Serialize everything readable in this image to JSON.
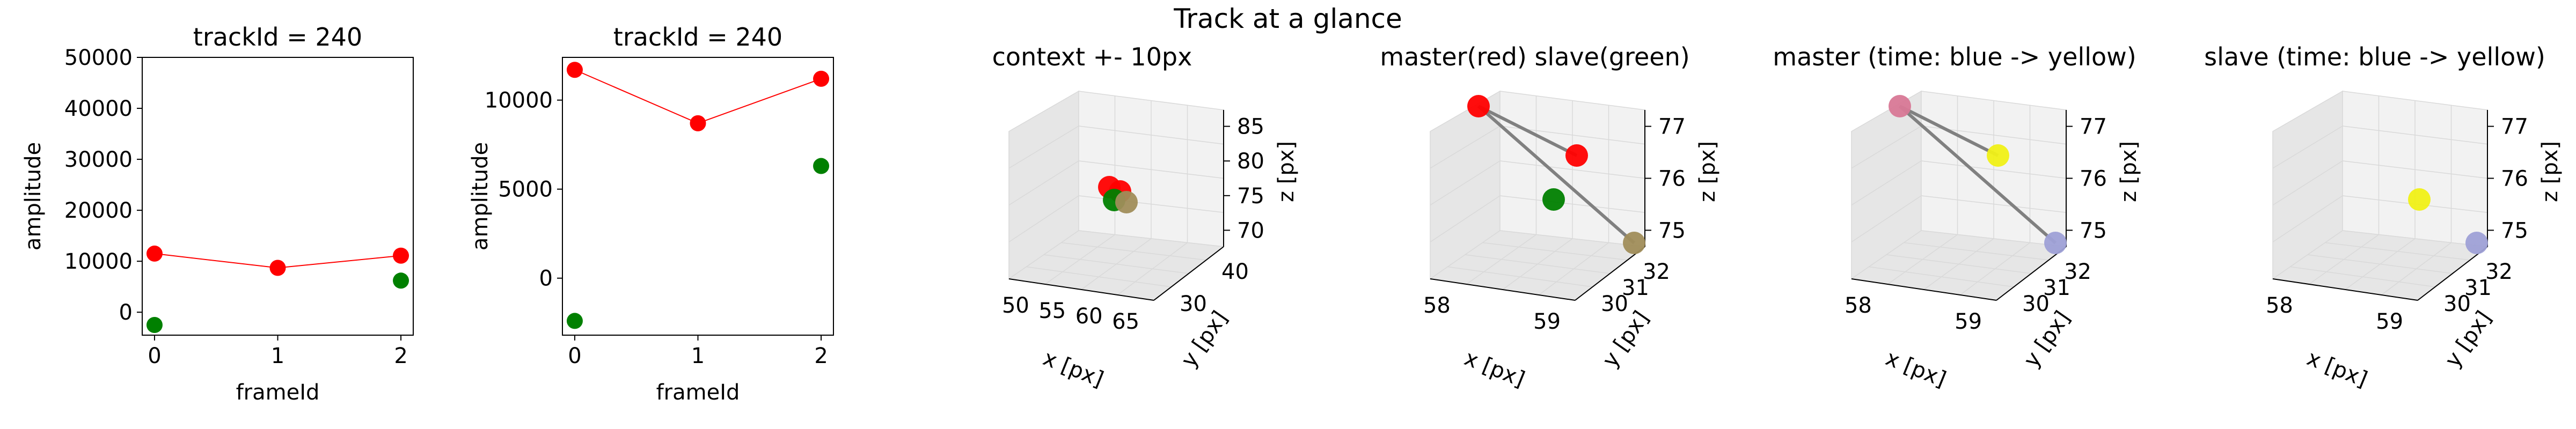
{
  "figure": {
    "suptitle": "Track at a glance"
  },
  "colors": {
    "red": "#ff0000",
    "green": "#008000",
    "line_red": "#ff0000",
    "link_gray": "#808080",
    "olive": "#a08d5a",
    "pink": "#d87896",
    "yellow": "#f0f016",
    "lavender": "#9ea0d6",
    "pane_light": "#f2f2f2",
    "pane_dark": "#e6e6e6",
    "grid": "#d9d9d9"
  },
  "chart_data": [
    {
      "type": "scatter",
      "title": "trackId = 240",
      "xlabel": "frameId",
      "ylabel": "amplitude",
      "xlim": [
        -0.1,
        2.1
      ],
      "ylim": [
        -4500,
        50000
      ],
      "xticks": [
        0,
        1,
        2
      ],
      "yticks": [
        0,
        10000,
        20000,
        30000,
        40000,
        50000
      ],
      "series": [
        {
          "color": "red",
          "x": [
            0,
            1,
            2
          ],
          "y": [
            11500,
            8700,
            11100
          ],
          "line": true
        },
        {
          "color": "green",
          "x": [
            0,
            2
          ],
          "y": [
            -2500,
            6200
          ],
          "line": false
        }
      ]
    },
    {
      "type": "scatter",
      "title": "trackId = 240",
      "xlabel": "frameId",
      "ylabel": "amplitude",
      "xlim": [
        -0.1,
        2.1
      ],
      "ylim": [
        -3200,
        12400
      ],
      "xticks": [
        0,
        1,
        2
      ],
      "yticks": [
        0,
        5000,
        10000
      ],
      "series": [
        {
          "color": "red",
          "x": [
            0,
            1,
            2
          ],
          "y": [
            11700,
            8700,
            11200
          ],
          "line": true
        },
        {
          "color": "green",
          "x": [
            0,
            2
          ],
          "y": [
            -2400,
            6300
          ],
          "line": false
        }
      ]
    },
    {
      "type": "scatter3d",
      "title": "context +- 10px",
      "xlabel": "x [px]",
      "ylabel": "y [px]",
      "zlabel": "z [px]",
      "xticks": [
        "50",
        "55",
        "60",
        "65"
      ],
      "yticks": [
        "30",
        "40"
      ],
      "zticks": [
        "70",
        "75",
        "80",
        "85"
      ],
      "points": [
        {
          "color": "red",
          "label_pos": "ctx-1"
        },
        {
          "color": "red",
          "label_pos": "ctx-2"
        },
        {
          "color": "green",
          "label_pos": "ctx-3"
        },
        {
          "color": "olive",
          "label_pos": "ctx-4"
        }
      ]
    },
    {
      "type": "scatter3d",
      "title": "master(red) slave(green)",
      "xlabel": "x [px]",
      "ylabel": "y [px]",
      "zlabel": "z [px]",
      "xticks": [
        "58",
        "59"
      ],
      "yticks": [
        "30",
        "31",
        "32"
      ],
      "zticks": [
        "75",
        "76",
        "77"
      ],
      "points": [
        {
          "color": "red"
        },
        {
          "color": "red"
        },
        {
          "color": "green"
        },
        {
          "color": "olive"
        }
      ]
    },
    {
      "type": "scatter3d",
      "title": "master (time: blue -> yellow)",
      "xlabel": "x [px]",
      "ylabel": "y [px]",
      "zlabel": "z [px]",
      "xticks": [
        "58",
        "59"
      ],
      "yticks": [
        "30",
        "31",
        "32"
      ],
      "zticks": [
        "75",
        "76",
        "77"
      ],
      "points": [
        {
          "color": "pink"
        },
        {
          "color": "yellow"
        },
        {
          "color": "lavender"
        }
      ]
    },
    {
      "type": "scatter3d",
      "title": "slave (time: blue -> yellow)",
      "xlabel": "x [px]",
      "ylabel": "y [px]",
      "zlabel": "z [px]",
      "xticks": [
        "58",
        "59"
      ],
      "yticks": [
        "30",
        "31",
        "32"
      ],
      "zticks": [
        "75",
        "76",
        "77"
      ],
      "points": [
        {
          "color": "yellow"
        },
        {
          "color": "lavender"
        }
      ]
    }
  ]
}
